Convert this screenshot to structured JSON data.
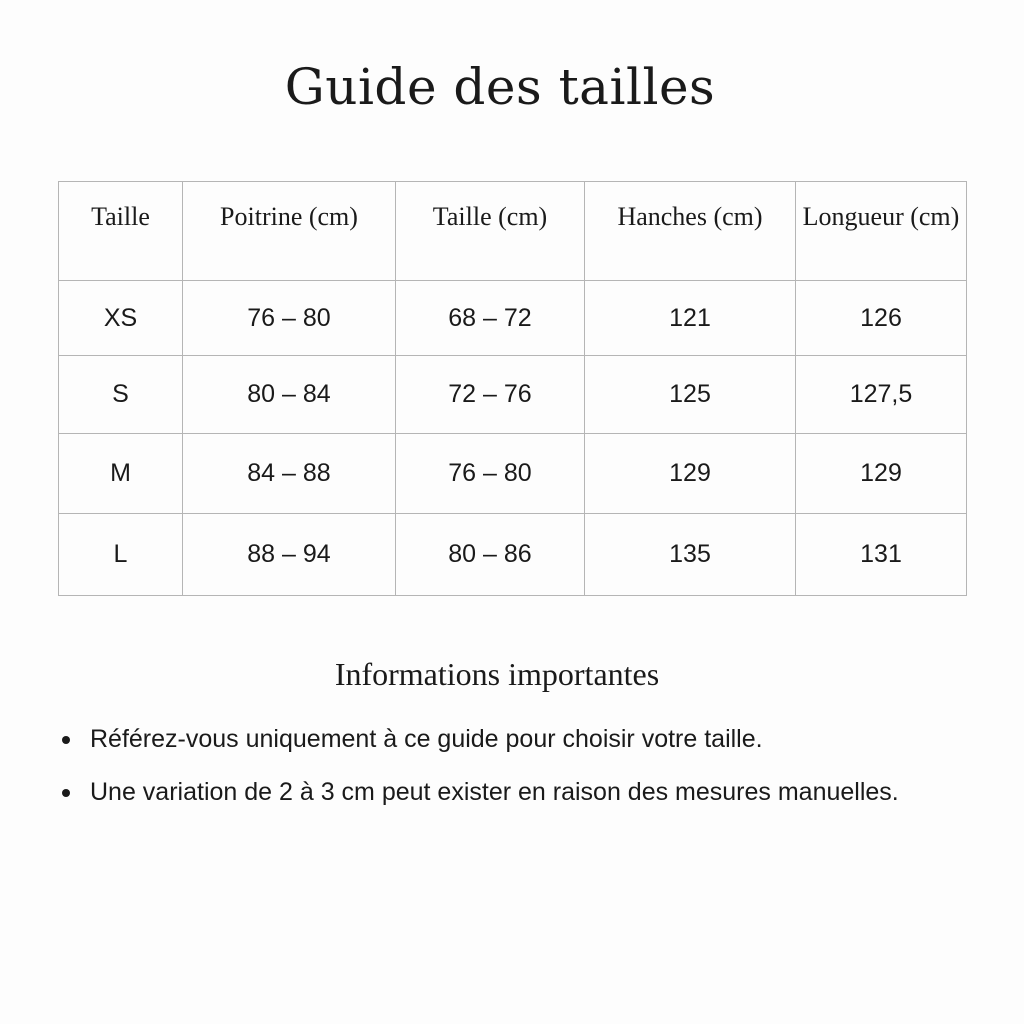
{
  "title": "Guide des tailles",
  "table": {
    "headers": [
      "Taille",
      "Poitrine (cm)",
      "Taille (cm)",
      "Hanches (cm)",
      "Longueur (cm)"
    ],
    "rows": [
      [
        "XS",
        "76 – 80",
        "68 – 72",
        "121",
        "126"
      ],
      [
        "S",
        "80 – 84",
        "72 – 76",
        "125",
        "127,5"
      ],
      [
        "M",
        "84 – 88",
        "76 – 80",
        "129",
        "129"
      ],
      [
        "L",
        "88 – 94",
        "80 – 86",
        "135",
        "131"
      ]
    ]
  },
  "info": {
    "heading": "Informations importantes",
    "bullets": [
      "Référez-vous uniquement à ce guide pour choisir votre taille.",
      "Une variation de 2 à 3 cm peut exister en raison des mesures manuelles."
    ]
  }
}
